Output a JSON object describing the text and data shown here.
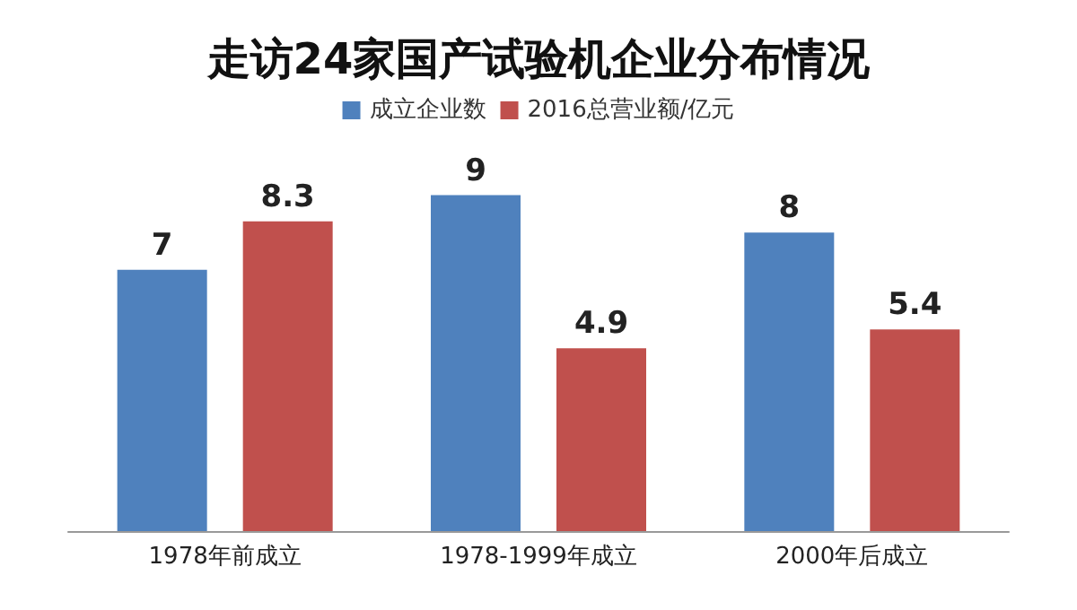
{
  "chart_data": {
    "type": "bar",
    "title": "走访24家国产试验机企业分布情况",
    "categories": [
      "1978年前成立",
      "1978-1999年成立",
      "2000年后成立"
    ],
    "series": [
      {
        "name": "成立企业数",
        "color": "#4f81bd",
        "values": [
          7,
          9,
          8
        ]
      },
      {
        "name": "2016总营业额/亿元",
        "color": "#c0504d",
        "values": [
          8.3,
          4.9,
          5.4
        ]
      }
    ],
    "data_labels": true,
    "legend": "top",
    "grid": false
  }
}
